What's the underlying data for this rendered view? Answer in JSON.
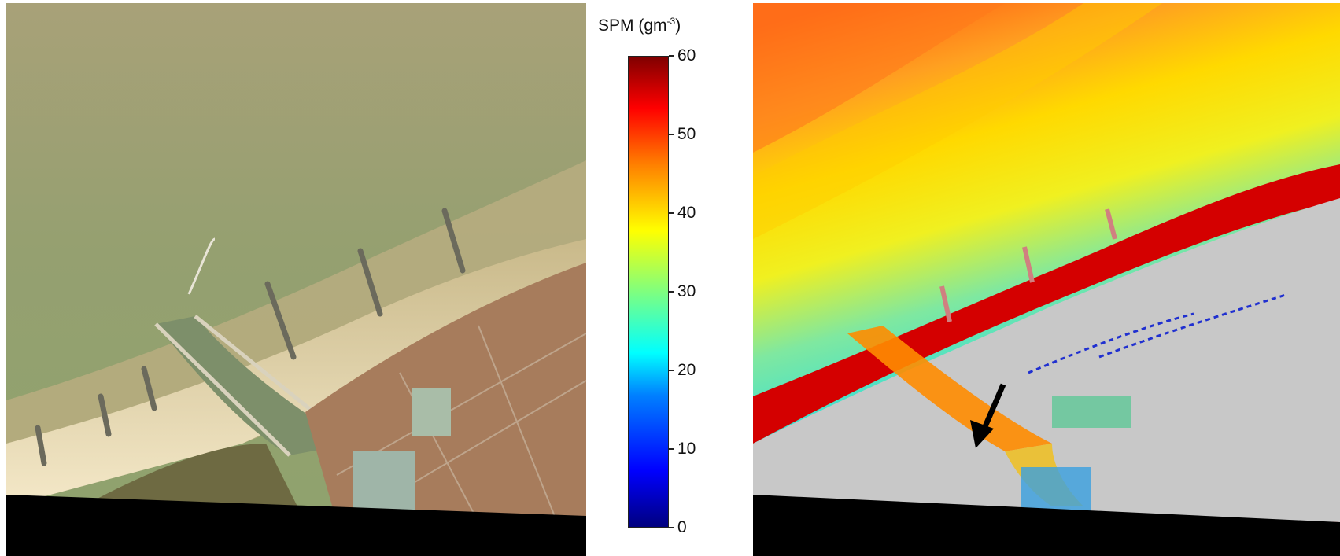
{
  "colorbar": {
    "title_main": "SPM (gm",
    "title_sup": "-3",
    "title_close": ")",
    "range": [
      0,
      60
    ],
    "tick_labels": [
      "60",
      "50",
      "40",
      "30",
      "20",
      "10",
      "0"
    ],
    "colormap": "jet"
  },
  "panels": [
    {
      "name": "true-colour image",
      "content": "coastline with harbour channel, groynes, town"
    },
    {
      "name": "SPM map",
      "content": "suspended particulate matter; land masked grey; black arrow at harbour channel"
    }
  ],
  "colors": {
    "sea": "#9aa26e",
    "beach": "#e8d4a4",
    "land_mask": "#c8c8c8",
    "nodata": "#000000"
  }
}
